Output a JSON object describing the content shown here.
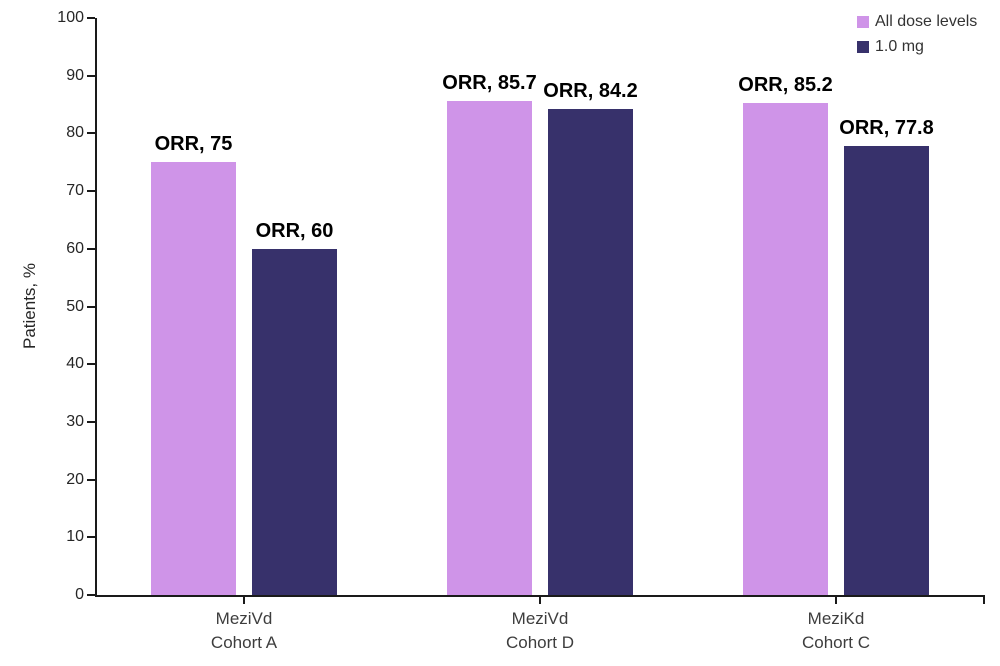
{
  "chart_data": {
    "type": "bar",
    "title": "",
    "xlabel": "",
    "ylabel": "Patients, %",
    "ylim": [
      0,
      100
    ],
    "yticks": [
      0,
      10,
      20,
      30,
      40,
      50,
      60,
      70,
      80,
      90,
      100
    ],
    "grid": false,
    "legend_position": "top-right",
    "categories": [
      {
        "line1": "MeziVd",
        "line2": "Cohort A"
      },
      {
        "line1": "MeziVd",
        "line2": "Cohort D"
      },
      {
        "line1": "MeziKd",
        "line2": "Cohort C"
      }
    ],
    "series": [
      {
        "name": "All dose levels",
        "color": "#CF94E8",
        "values": [
          75,
          85.7,
          85.2
        ],
        "bar_labels": [
          "ORR, 75",
          "ORR, 85.7",
          "ORR, 85.2"
        ]
      },
      {
        "name": "1.0 mg",
        "color": "#37316B",
        "values": [
          60,
          84.2,
          77.8
        ],
        "bar_labels": [
          "ORR, 60",
          "ORR, 84.2",
          "ORR, 77.8"
        ]
      }
    ]
  }
}
